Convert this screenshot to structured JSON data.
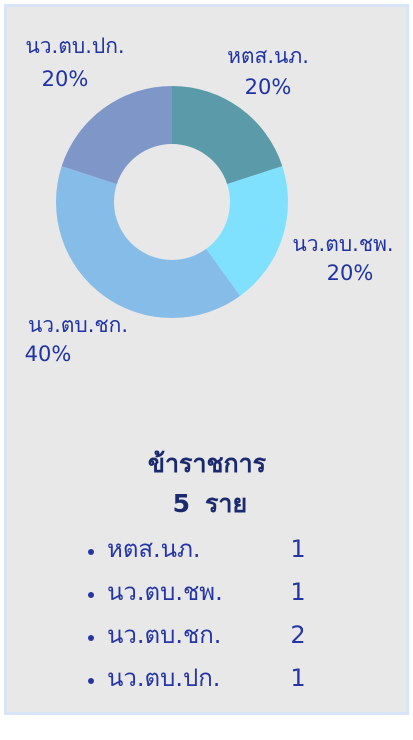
{
  "chart_data": {
    "type": "donut",
    "categories": [
      "หตส.นภ.",
      "นว.ตบ.ชพ.",
      "นว.ตบ.ชก.",
      "นว.ตบ.ปก."
    ],
    "values": [
      20,
      20,
      40,
      20
    ],
    "value_labels": [
      "20%",
      "20%",
      "40%",
      "20%"
    ],
    "colors": [
      "#5b9ba9",
      "#7fe1fd",
      "#86bce8",
      "#7f96c9"
    ]
  },
  "summary": {
    "title": "ข้าราชการ",
    "count": 5,
    "unit": "ราย",
    "items": [
      {
        "name": "หตส.นภ.",
        "count": 1
      },
      {
        "name": "นว.ตบ.ชพ.",
        "count": 1
      },
      {
        "name": "นว.ตบ.ชก.",
        "count": 2
      },
      {
        "name": "นว.ตบ.ปก.",
        "count": 1
      }
    ]
  }
}
